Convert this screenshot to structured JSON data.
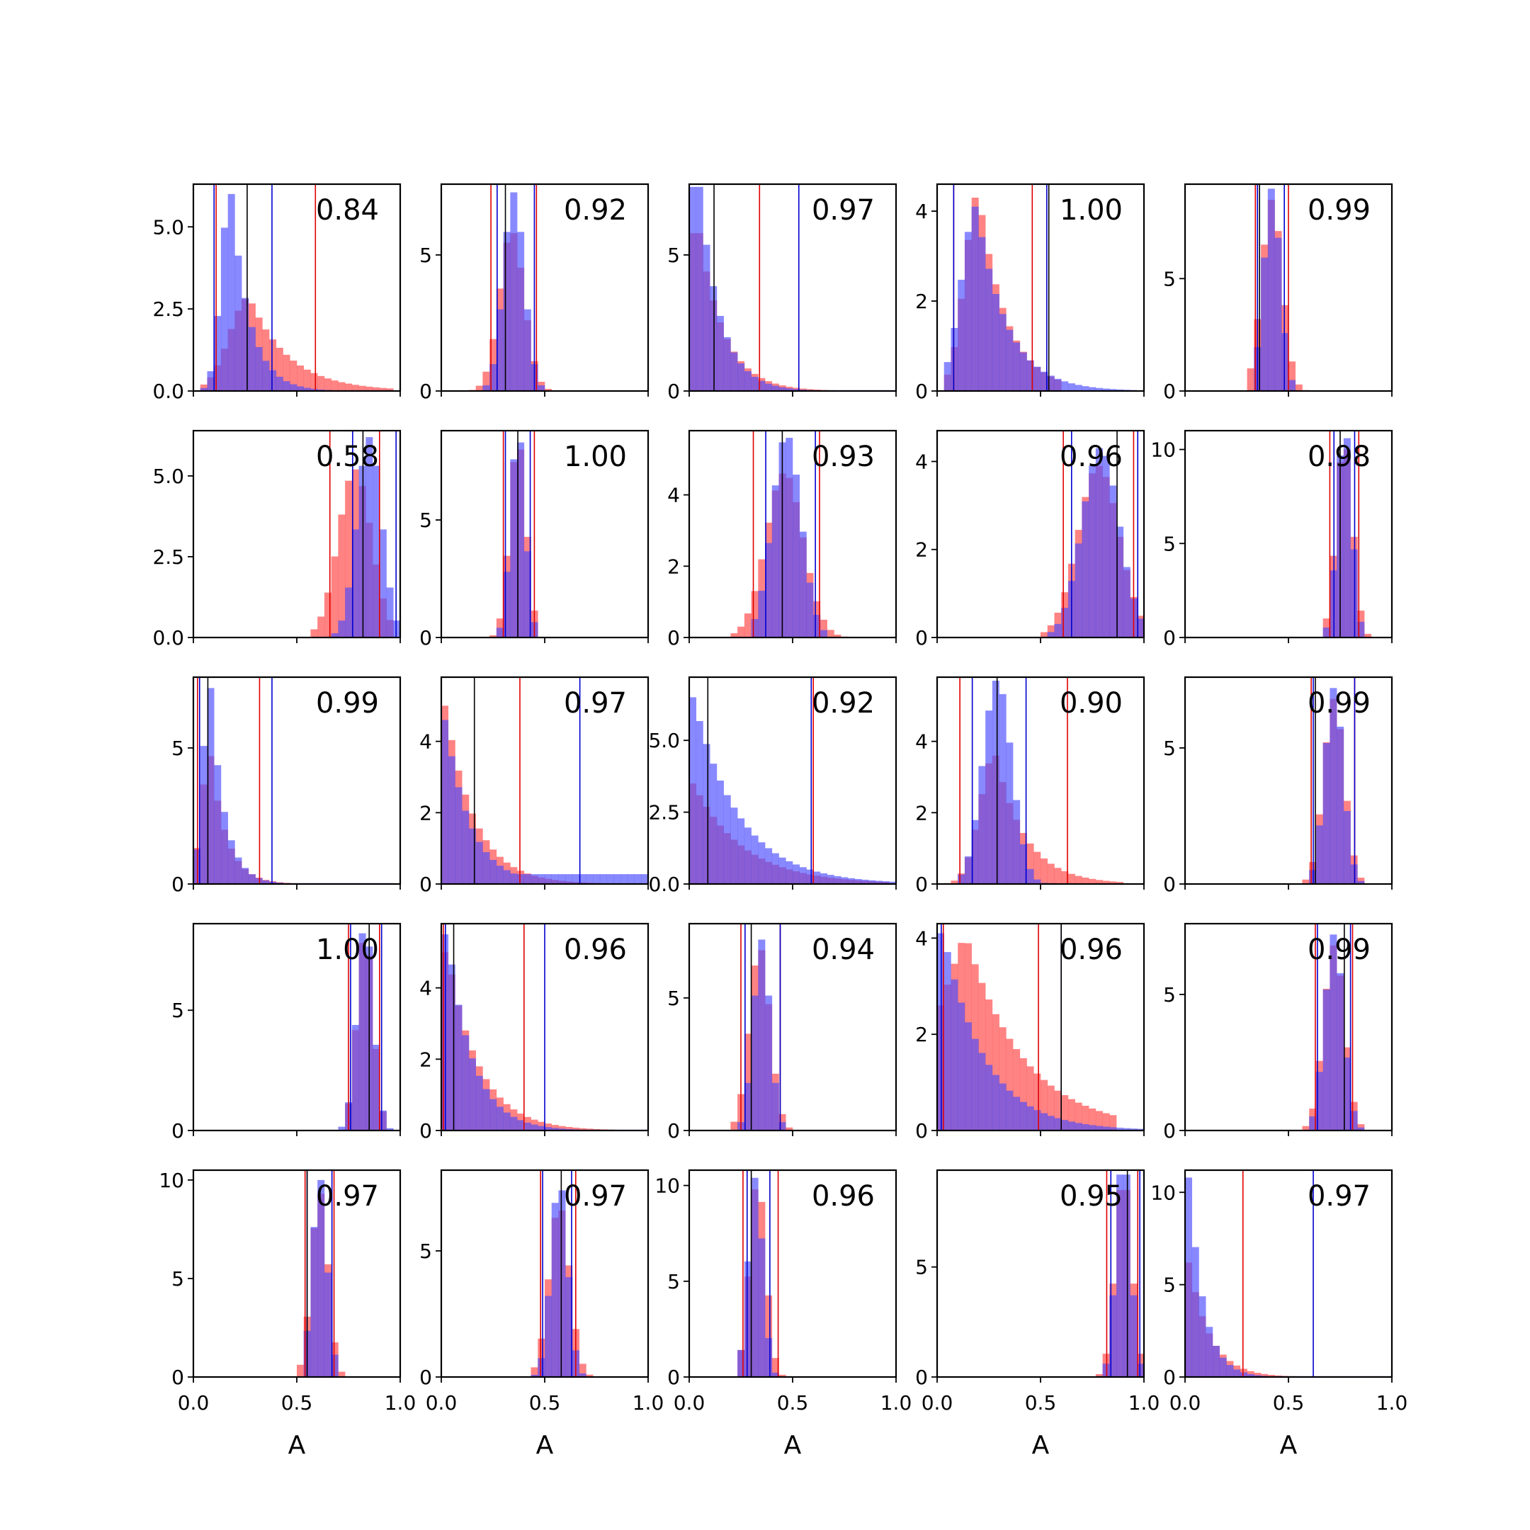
{
  "chart_data": {
    "type": "histogram-grid",
    "rows": 5,
    "cols": 5,
    "xlim": [
      0.0,
      1.0
    ],
    "xticks": [
      {
        "value": 0.0,
        "label": "0.0"
      },
      {
        "value": 0.5,
        "label": "0.5"
      },
      {
        "value": 1.0,
        "label": "1.0"
      }
    ],
    "xlabel": "A",
    "series_colors": {
      "red": "#ff4040",
      "blue": "#4a4aff",
      "interval_red": "#e00000",
      "interval_blue": "#0000d0",
      "black": "#000000"
    },
    "panels": [
      {
        "label": "0.84",
        "ymax": 6.3,
        "yticks": [
          {
            "value": 0,
            "label": "0.0"
          },
          {
            "value": 2.5,
            "label": "2.5"
          },
          {
            "value": 5,
            "label": "5.0"
          }
        ],
        "red": {
          "mean": 0.27,
          "sd": 0.17,
          "min": 0.02,
          "max": 0.95,
          "ymax": 2.8,
          "skew": "right",
          "lo": 0.11,
          "hi": 0.59
        },
        "blue": {
          "mean": 0.18,
          "sd": 0.08,
          "min": 0.02,
          "max": 0.95,
          "ymax": 6.0,
          "skew": "right",
          "lo": 0.1,
          "hi": 0.38
        },
        "black": 0.26
      },
      {
        "label": "0.92",
        "ymax": 7.6,
        "yticks": [
          {
            "value": 0,
            "label": "0"
          },
          {
            "value": 5,
            "label": "5"
          }
        ],
        "red": {
          "mean": 0.34,
          "sd": 0.06,
          "min": 0.15,
          "max": 0.55,
          "ymax": 5.8,
          "lo": 0.24,
          "hi": 0.46
        },
        "blue": {
          "mean": 0.35,
          "sd": 0.05,
          "min": 0.2,
          "max": 0.5,
          "ymax": 7.3,
          "lo": 0.27,
          "hi": 0.45
        },
        "black": 0.31
      },
      {
        "label": "0.97",
        "ymax": 7.6,
        "yticks": [
          {
            "value": 0,
            "label": "0"
          },
          {
            "value": 5,
            "label": "5"
          }
        ],
        "red": {
          "mean": 0.05,
          "sd": 0.12,
          "min": 0.0,
          "max": 0.95,
          "ymax": 5.8,
          "skew": "decay",
          "lo": 0.0,
          "hi": 0.34
        },
        "blue": {
          "mean": 0.05,
          "sd": 0.1,
          "min": 0.0,
          "max": 1.0,
          "ymax": 7.5,
          "skew": "decay",
          "lo": 0.0,
          "hi": 0.53
        },
        "black": 0.12
      },
      {
        "label": "1.00",
        "ymax": 4.6,
        "yticks": [
          {
            "value": 0,
            "label": "0"
          },
          {
            "value": 2,
            "label": "2"
          },
          {
            "value": 4,
            "label": "4"
          }
        ],
        "red": {
          "mean": 0.2,
          "sd": 0.12,
          "min": 0.05,
          "max": 0.6,
          "ymax": 4.3,
          "skew": "right",
          "lo": 0.08,
          "hi": 0.46
        },
        "blue": {
          "mean": 0.19,
          "sd": 0.13,
          "min": 0.05,
          "max": 0.95,
          "ymax": 4.1,
          "skew": "right",
          "lo": 0.08,
          "hi": 0.53
        },
        "black": 0.54
      },
      {
        "label": "0.99",
        "ymax": 9.2,
        "yticks": [
          {
            "value": 0,
            "label": "0"
          },
          {
            "value": 5,
            "label": "5"
          }
        ],
        "red": {
          "mean": 0.42,
          "sd": 0.05,
          "min": 0.3,
          "max": 0.6,
          "ymax": 8.5,
          "lo": 0.34,
          "hi": 0.5
        },
        "blue": {
          "mean": 0.42,
          "sd": 0.04,
          "min": 0.32,
          "max": 0.52,
          "ymax": 9.0,
          "lo": 0.35,
          "hi": 0.48
        },
        "black": 0.36
      },
      {
        "label": "0.58",
        "ymax": 6.4,
        "yticks": [
          {
            "value": 0,
            "label": "0.0"
          },
          {
            "value": 2.5,
            "label": "2.5"
          },
          {
            "value": 5,
            "label": "5.0"
          }
        ],
        "red": {
          "mean": 0.78,
          "sd": 0.08,
          "min": 0.58,
          "max": 0.98,
          "ymax": 5.2,
          "lo": 0.66,
          "hi": 0.9
        },
        "blue": {
          "mean": 0.85,
          "sd": 0.06,
          "min": 0.65,
          "max": 1.0,
          "ymax": 6.2,
          "lo": 0.77,
          "hi": 0.98
        },
        "black": 0.82
      },
      {
        "label": "1.00",
        "ymax": 8.8,
        "yticks": [
          {
            "value": 0,
            "label": "0"
          },
          {
            "value": 5,
            "label": "5"
          }
        ],
        "red": {
          "mean": 0.37,
          "sd": 0.04,
          "min": 0.25,
          "max": 0.48,
          "ymax": 8.0,
          "lo": 0.3,
          "hi": 0.45
        },
        "blue": {
          "mean": 0.37,
          "sd": 0.035,
          "min": 0.27,
          "max": 0.46,
          "ymax": 8.3,
          "lo": 0.31,
          "hi": 0.43
        },
        "black": 0.37
      },
      {
        "label": "0.93",
        "ymax": 5.8,
        "yticks": [
          {
            "value": 0,
            "label": "0"
          },
          {
            "value": 2,
            "label": "2"
          },
          {
            "value": 4,
            "label": "4"
          }
        ],
        "red": {
          "mean": 0.46,
          "sd": 0.09,
          "min": 0.2,
          "max": 0.78,
          "ymax": 4.6,
          "lo": 0.31,
          "hi": 0.63
        },
        "blue": {
          "mean": 0.47,
          "sd": 0.07,
          "min": 0.3,
          "max": 0.66,
          "ymax": 5.6,
          "lo": 0.37,
          "hi": 0.61
        },
        "black": 0.45
      },
      {
        "label": "0.96",
        "ymax": 4.7,
        "yticks": [
          {
            "value": 0,
            "label": "0"
          },
          {
            "value": 2,
            "label": "2"
          },
          {
            "value": 4,
            "label": "4"
          }
        ],
        "red": {
          "mean": 0.78,
          "sd": 0.1,
          "min": 0.5,
          "max": 1.0,
          "ymax": 3.9,
          "lo": 0.61,
          "hi": 0.95
        },
        "blue": {
          "mean": 0.79,
          "sd": 0.09,
          "min": 0.55,
          "max": 1.0,
          "ymax": 4.3,
          "lo": 0.65,
          "hi": 0.97
        },
        "black": 0.87
      },
      {
        "label": "0.98",
        "ymax": 11.0,
        "yticks": [
          {
            "value": 0,
            "label": "0"
          },
          {
            "value": 5,
            "label": "5"
          },
          {
            "value": 10,
            "label": "10"
          }
        ],
        "red": {
          "mean": 0.77,
          "sd": 0.04,
          "min": 0.66,
          "max": 0.9,
          "ymax": 10.0,
          "lo": 0.7,
          "hi": 0.84
        },
        "blue": {
          "mean": 0.77,
          "sd": 0.035,
          "min": 0.68,
          "max": 0.86,
          "ymax": 10.6,
          "lo": 0.72,
          "hi": 0.82
        },
        "black": 0.75
      },
      {
        "label": "0.99",
        "ymax": 7.6,
        "yticks": [
          {
            "value": 0,
            "label": "0"
          },
          {
            "value": 5,
            "label": "5"
          }
        ],
        "red": {
          "mean": 0.08,
          "sd": 0.07,
          "min": 0.0,
          "max": 0.55,
          "ymax": 4.7,
          "skew": "right",
          "lo": 0.02,
          "hi": 0.32
        },
        "blue": {
          "mean": 0.08,
          "sd": 0.06,
          "min": 0.0,
          "max": 0.95,
          "ymax": 7.2,
          "skew": "right",
          "lo": 0.03,
          "hi": 0.38
        },
        "black": 0.07
      },
      {
        "label": "0.97",
        "ymax": 5.8,
        "yticks": [
          {
            "value": 0,
            "label": "0"
          },
          {
            "value": 2,
            "label": "2"
          },
          {
            "value": 4,
            "label": "4"
          }
        ],
        "red": {
          "mean": 0.02,
          "sd": 0.14,
          "min": 0.0,
          "max": 0.85,
          "ymax": 5.0,
          "skew": "decay",
          "lo": 0.0,
          "hi": 0.38
        },
        "blue": {
          "mean": 0.02,
          "sd": 0.12,
          "min": 0.0,
          "max": 1.0,
          "ymax": 4.6,
          "skew": "decay-tail",
          "lo": 0.0,
          "hi": 0.67
        },
        "black": 0.16
      },
      {
        "label": "0.92",
        "ymax": 7.2,
        "yticks": [
          {
            "value": 0,
            "label": "0.0"
          },
          {
            "value": 2.5,
            "label": "2.5"
          },
          {
            "value": 5,
            "label": "5.0"
          }
        ],
        "red": {
          "mean": 0.02,
          "sd": 0.24,
          "min": 0.0,
          "max": 0.95,
          "ymax": 3.5,
          "skew": "decay",
          "lo": 0.0,
          "hi": 0.6
        },
        "blue": {
          "mean": 0.02,
          "sd": 0.22,
          "min": 0.0,
          "max": 1.0,
          "ymax": 6.5,
          "skew": "decay",
          "lo": 0.0,
          "hi": 0.59
        },
        "black": 0.09
      },
      {
        "label": "0.90",
        "ymax": 5.8,
        "yticks": [
          {
            "value": 0,
            "label": "0"
          },
          {
            "value": 2,
            "label": "2"
          },
          {
            "value": 4,
            "label": "4"
          }
        ],
        "red": {
          "mean": 0.28,
          "sd": 0.13,
          "min": 0.05,
          "max": 0.9,
          "ymax": 3.6,
          "skew": "right",
          "lo": 0.11,
          "hi": 0.63
        },
        "blue": {
          "mean": 0.29,
          "sd": 0.07,
          "min": 0.1,
          "max": 0.55,
          "ymax": 5.7,
          "lo": 0.17,
          "hi": 0.43
        },
        "black": 0.29
      },
      {
        "label": "0.99",
        "ymax": 7.6,
        "yticks": [
          {
            "value": 0,
            "label": "0"
          },
          {
            "value": 5,
            "label": "5"
          }
        ],
        "red": {
          "mean": 0.72,
          "sd": 0.05,
          "min": 0.58,
          "max": 0.88,
          "ymax": 6.8,
          "lo": 0.61,
          "hi": 0.82
        },
        "blue": {
          "mean": 0.72,
          "sd": 0.045,
          "min": 0.6,
          "max": 0.86,
          "ymax": 7.2,
          "lo": 0.62,
          "hi": 0.82
        },
        "black": 0.63
      },
      {
        "label": "1.00",
        "ymax": 8.6,
        "yticks": [
          {
            "value": 0,
            "label": "0"
          },
          {
            "value": 5,
            "label": "5"
          }
        ],
        "red": {
          "mean": 0.83,
          "sd": 0.04,
          "min": 0.72,
          "max": 0.92,
          "ymax": 7.8,
          "lo": 0.75,
          "hi": 0.9
        },
        "blue": {
          "mean": 0.83,
          "sd": 0.04,
          "min": 0.7,
          "max": 0.96,
          "ymax": 8.2,
          "lo": 0.76,
          "hi": 0.91
        },
        "black": 0.85
      },
      {
        "label": "0.96",
        "ymax": 5.8,
        "yticks": [
          {
            "value": 0,
            "label": "0"
          },
          {
            "value": 2,
            "label": "2"
          },
          {
            "value": 4,
            "label": "4"
          }
        ],
        "red": {
          "mean": 0.03,
          "sd": 0.15,
          "min": 0.0,
          "max": 0.9,
          "ymax": 5.0,
          "skew": "decay",
          "lo": 0.01,
          "hi": 0.4
        },
        "blue": {
          "mean": 0.03,
          "sd": 0.12,
          "min": 0.0,
          "max": 1.0,
          "ymax": 5.5,
          "skew": "decay",
          "lo": 0.02,
          "hi": 0.5
        },
        "black": 0.06
      },
      {
        "label": "0.94",
        "ymax": 7.8,
        "yticks": [
          {
            "value": 0,
            "label": "0"
          },
          {
            "value": 5,
            "label": "5"
          }
        ],
        "red": {
          "mean": 0.34,
          "sd": 0.05,
          "min": 0.2,
          "max": 0.5,
          "ymax": 6.8,
          "lo": 0.25,
          "hi": 0.44
        },
        "blue": {
          "mean": 0.35,
          "sd": 0.04,
          "min": 0.24,
          "max": 0.46,
          "ymax": 7.2,
          "lo": 0.27,
          "hi": 0.44
        },
        "black": 0.3
      },
      {
        "label": "0.96",
        "ymax": 4.3,
        "yticks": [
          {
            "value": 0,
            "label": "0"
          },
          {
            "value": 2,
            "label": "2"
          },
          {
            "value": 4,
            "label": "4"
          }
        ],
        "red": {
          "mean": 0.05,
          "sd": 0.2,
          "min": 0.0,
          "max": 0.85,
          "ymax": 3.9,
          "skew": "decay-hump",
          "lo": 0.03,
          "hi": 0.49
        },
        "blue": {
          "mean": 0.03,
          "sd": 0.2,
          "min": 0.0,
          "max": 1.0,
          "ymax": 4.1,
          "skew": "decay",
          "lo": 0.02,
          "hi": 0.6
        },
        "black": 0.6
      },
      {
        "label": "0.99",
        "ymax": 7.6,
        "yticks": [
          {
            "value": 0,
            "label": "0"
          },
          {
            "value": 5,
            "label": "5"
          }
        ],
        "red": {
          "mean": 0.72,
          "sd": 0.05,
          "min": 0.58,
          "max": 0.88,
          "ymax": 6.8,
          "lo": 0.63,
          "hi": 0.81
        },
        "blue": {
          "mean": 0.72,
          "sd": 0.045,
          "min": 0.6,
          "max": 0.86,
          "ymax": 7.2,
          "lo": 0.64,
          "hi": 0.8
        },
        "black": 0.77
      },
      {
        "label": "0.97",
        "ymax": 10.5,
        "yticks": [
          {
            "value": 0,
            "label": "0"
          },
          {
            "value": 5,
            "label": "5"
          },
          {
            "value": 10,
            "label": "10"
          }
        ],
        "red": {
          "mean": 0.61,
          "sd": 0.04,
          "min": 0.5,
          "max": 0.72,
          "ymax": 9.3,
          "lo": 0.54,
          "hi": 0.68
        },
        "blue": {
          "mean": 0.61,
          "sd": 0.035,
          "min": 0.52,
          "max": 0.7,
          "ymax": 10.0,
          "lo": 0.55,
          "hi": 0.67
        },
        "black": 0.55
      },
      {
        "label": "0.97",
        "ymax": 8.2,
        "yticks": [
          {
            "value": 0,
            "label": "0"
          },
          {
            "value": 5,
            "label": "5"
          }
        ],
        "red": {
          "mean": 0.57,
          "sd": 0.05,
          "min": 0.42,
          "max": 0.72,
          "ymax": 6.6,
          "lo": 0.48,
          "hi": 0.65
        },
        "blue": {
          "mean": 0.57,
          "sd": 0.04,
          "min": 0.45,
          "max": 0.7,
          "ymax": 7.4,
          "lo": 0.49,
          "hi": 0.63
        },
        "black": 0.58
      },
      {
        "label": "0.96",
        "ymax": 10.8,
        "yticks": [
          {
            "value": 0,
            "label": "0"
          },
          {
            "value": 5,
            "label": "5"
          },
          {
            "value": 10,
            "label": "10"
          }
        ],
        "red": {
          "mean": 0.33,
          "sd": 0.04,
          "min": 0.22,
          "max": 0.5,
          "ymax": 9.8,
          "lo": 0.26,
          "hi": 0.43
        },
        "blue": {
          "mean": 0.32,
          "sd": 0.035,
          "min": 0.22,
          "max": 0.44,
          "ymax": 10.4,
          "lo": 0.28,
          "hi": 0.39
        },
        "black": 0.3
      },
      {
        "label": "0.95",
        "ymax": 9.4,
        "yticks": [
          {
            "value": 0,
            "label": "0"
          },
          {
            "value": 5,
            "label": "5"
          }
        ],
        "red": {
          "mean": 0.9,
          "sd": 0.04,
          "min": 0.76,
          "max": 1.0,
          "ymax": 8.5,
          "lo": 0.82,
          "hi": 0.97
        },
        "blue": {
          "mean": 0.9,
          "sd": 0.035,
          "min": 0.78,
          "max": 1.0,
          "ymax": 9.2,
          "lo": 0.84,
          "hi": 0.98
        },
        "black": 0.92
      },
      {
        "label": "0.97",
        "ymax": 11.2,
        "yticks": [
          {
            "value": 0,
            "label": "0"
          },
          {
            "value": 5,
            "label": "5"
          },
          {
            "value": 10,
            "label": "10"
          }
        ],
        "red": {
          "mean": 0.02,
          "sd": 0.1,
          "min": 0.0,
          "max": 0.75,
          "ymax": 6.2,
          "skew": "decay",
          "lo": 0.0,
          "hi": 0.28
        },
        "blue": {
          "mean": 0.02,
          "sd": 0.07,
          "min": 0.0,
          "max": 1.0,
          "ymax": 10.8,
          "skew": "decay",
          "lo": 0.0,
          "hi": 0.62
        },
        "black": 0.0
      }
    ]
  }
}
